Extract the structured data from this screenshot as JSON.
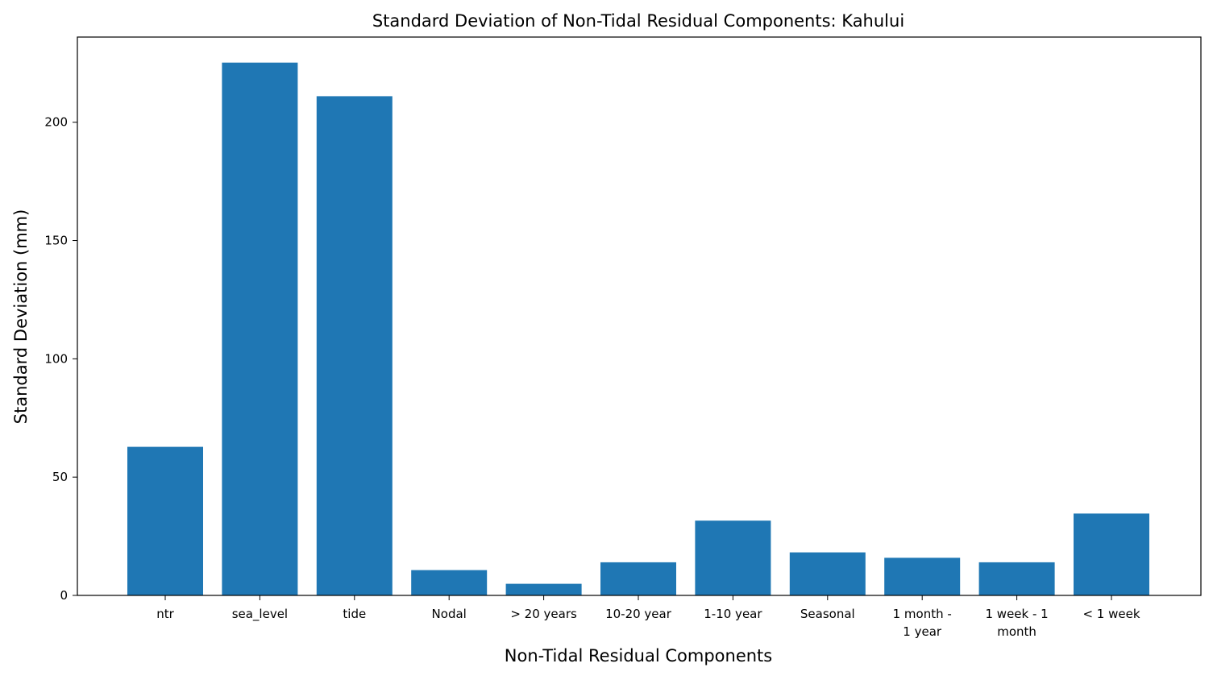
{
  "chart_data": {
    "type": "bar",
    "title": "Standard Deviation of Non-Tidal Residual Components: Kahului",
    "xlabel": "Non-Tidal Residual Components",
    "ylabel": "Standard Deviation (mm)",
    "categories": [
      [
        "ntr"
      ],
      [
        "sea_level"
      ],
      [
        "tide"
      ],
      [
        "Nodal"
      ],
      [
        "> 20 years"
      ],
      [
        "10-20 year"
      ],
      [
        "1-10 year"
      ],
      [
        "Seasonal"
      ],
      [
        "1 month -",
        "1 year"
      ],
      [
        "1 week - 1",
        "month"
      ],
      [
        "< 1 week"
      ]
    ],
    "values": [
      62.8,
      225.2,
      211.0,
      10.7,
      4.9,
      14.0,
      31.6,
      18.2,
      15.9,
      14.0,
      34.6
    ],
    "ylim": [
      0,
      236
    ],
    "yticks": [
      0,
      50,
      100,
      150,
      200
    ],
    "grid": false,
    "bar_color": "#1f77b4"
  }
}
